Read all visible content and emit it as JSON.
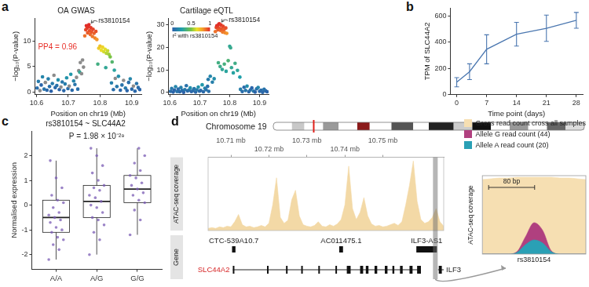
{
  "chart_data": [
    {
      "panel_label": "a",
      "type": "scatter",
      "title": "OA GWAS",
      "x_label": "Position on chr19 (Mb)",
      "y_label": "−log₁₀(P-value)",
      "xlim": [
        10.595,
        10.93
      ],
      "xticks": [
        10.6,
        10.7,
        10.8,
        10.9
      ],
      "ylim": [
        -0.5,
        14.5
      ],
      "yticks": [
        0,
        5,
        10
      ],
      "points": {
        "x": [
          10.602,
          10.606,
          10.611,
          10.615,
          10.619,
          10.624,
          10.628,
          10.633,
          10.637,
          10.641,
          10.646,
          10.65,
          10.655,
          10.659,
          10.664,
          10.668,
          10.672,
          10.677,
          10.681,
          10.686,
          10.69,
          10.695,
          10.699,
          10.703,
          10.708,
          10.712,
          10.717,
          10.721,
          10.726,
          10.73,
          10.836,
          10.842,
          10.848,
          10.853,
          10.858,
          10.864,
          10.869,
          10.874,
          10.88,
          10.885,
          10.89,
          10.895,
          10.9,
          10.905,
          10.91,
          10.915,
          10.92,
          10.925,
          10.733,
          10.736,
          10.738,
          10.742,
          10.745,
          10.748,
          10.793,
          10.818,
          10.838,
          10.845,
          10.796,
          10.8,
          10.804,
          10.808,
          10.812,
          10.816,
          10.82,
          10.824,
          10.828,
          10.832,
          10.752,
          10.755,
          10.757,
          10.759,
          10.761,
          10.763,
          10.765,
          10.767,
          10.769,
          10.771,
          10.773,
          10.776,
          10.778,
          10.781,
          10.784,
          10.787,
          10.79
        ],
        "y": [
          0.8,
          2.1,
          0.3,
          1.4,
          3.0,
          0.6,
          1.9,
          0.4,
          2.6,
          1.1,
          0.2,
          1.7,
          3.3,
          0.9,
          1.3,
          2.4,
          0.5,
          1.0,
          2.0,
          0.3,
          1.6,
          2.8,
          0.7,
          1.2,
          3.5,
          0.4,
          2.2,
          1.5,
          2.9,
          0.6,
          1.8,
          0.5,
          2.7,
          1.1,
          3.1,
          0.4,
          1.4,
          2.3,
          0.8,
          0.3,
          1.9,
          2.6,
          0.6,
          1.2,
          0.2,
          1.7,
          0.9,
          0.5,
          4.2,
          3.9,
          5.8,
          3.6,
          6.3,
          4.9,
          5.5,
          4.8,
          5.9,
          4.3,
          8.6,
          9.0,
          8.2,
          8.8,
          7.9,
          8.4,
          7.6,
          8.1,
          7.4,
          6.9,
          11.0,
          12.2,
          13.0,
          12.5,
          11.6,
          12.8,
          13.2,
          12.0,
          11.3,
          12.6,
          11.8,
          10.9,
          12.3,
          11.5,
          10.6,
          11.9,
          10.3
        ],
        "r2": [
          0.05,
          0.1,
          null,
          0.02,
          0.15,
          0.08,
          null,
          0.03,
          0.12,
          0.06,
          0.01,
          0.1,
          null,
          0.04,
          0.07,
          0.18,
          0.02,
          null,
          0.09,
          0.03,
          0.11,
          0.2,
          0.05,
          null,
          0.22,
          0.04,
          0.14,
          0.08,
          null,
          0.06,
          0.12,
          0.05,
          null,
          0.09,
          0.18,
          0.03,
          0.07,
          null,
          0.1,
          0.02,
          0.06,
          0.15,
          0.04,
          null,
          0.03,
          0.08,
          0.05,
          0.02,
          null,
          0.3,
          null,
          null,
          null,
          null,
          0.35,
          0.3,
          0.4,
          0.28,
          0.7,
          0.72,
          0.66,
          0.68,
          0.62,
          0.64,
          0.58,
          0.6,
          0.55,
          0.5,
          0.88,
          0.95,
          1.0,
          0.97,
          0.92,
          0.99,
          1.0,
          0.94,
          0.9,
          0.98,
          0.93,
          0.87,
          0.96,
          0.91,
          0.85,
          0.94,
          0.82
        ]
      },
      "annotations": [
        {
          "text": "PP4 = 0.96",
          "color": "#e8312a"
        },
        {
          "text": "rs3810154",
          "x": 10.765,
          "y": 13.2
        }
      ]
    },
    {
      "type": "scatter",
      "title": "Cartilage eQTL",
      "x_label": "Position on chr19 (Mb)",
      "y_label": "−log₁₀(P-value)",
      "xlim": [
        10.595,
        10.93
      ],
      "xticks": [
        10.6,
        10.7,
        10.8,
        10.9
      ],
      "ylim": [
        -1,
        33
      ],
      "yticks": [
        0,
        10,
        20,
        30
      ],
      "points": {
        "x": [
          10.602,
          10.606,
          10.611,
          10.615,
          10.619,
          10.624,
          10.628,
          10.633,
          10.637,
          10.641,
          10.646,
          10.65,
          10.655,
          10.659,
          10.664,
          10.668,
          10.672,
          10.677,
          10.681,
          10.686,
          10.69,
          10.695,
          10.699,
          10.703,
          10.708,
          10.712,
          10.717,
          10.721,
          10.726,
          10.73,
          10.836,
          10.842,
          10.848,
          10.853,
          10.858,
          10.864,
          10.869,
          10.874,
          10.88,
          10.885,
          10.89,
          10.895,
          10.9,
          10.905,
          10.91,
          10.915,
          10.92,
          10.925,
          10.728,
          10.735,
          10.742,
          10.748,
          10.8,
          10.803,
          10.762,
          10.768,
          10.775,
          10.782,
          10.788,
          10.795,
          10.806,
          10.812,
          10.818,
          10.826,
          10.834,
          10.752,
          10.755,
          10.757,
          10.759,
          10.761,
          10.763,
          10.765,
          10.767,
          10.769,
          10.771,
          10.773,
          10.776,
          10.778,
          10.781,
          10.784,
          10.787,
          10.79
        ],
        "y": [
          0.5,
          1.8,
          0.2,
          1.1,
          2.6,
          0.4,
          1.5,
          0.3,
          2.2,
          0.9,
          0.1,
          1.3,
          3.0,
          0.7,
          1.0,
          2.0,
          0.4,
          0.8,
          1.7,
          0.2,
          1.2,
          2.4,
          0.6,
          0.9,
          3.4,
          0.3,
          1.9,
          1.2,
          2.7,
          0.5,
          1.4,
          0.4,
          2.3,
          0.9,
          2.8,
          0.3,
          1.1,
          2.0,
          0.6,
          0.2,
          1.6,
          2.2,
          0.5,
          1.0,
          0.1,
          1.4,
          0.7,
          0.3,
          5.8,
          7.2,
          4.6,
          6.1,
          20.5,
          19.8,
          13.2,
          11.5,
          10.2,
          12.6,
          9.4,
          14.1,
          11.0,
          8.7,
          12.9,
          9.8,
          6.8,
          27.0,
          28.8,
          29.6,
          29.0,
          27.8,
          30.1,
          30.5,
          28.4,
          27.5,
          29.9,
          28.1,
          26.8,
          29.3,
          27.9,
          26.5,
          28.6,
          26.2
        ],
        "r2": [
          0.05,
          0.1,
          0.02,
          0.02,
          0.15,
          0.08,
          0.04,
          0.03,
          0.12,
          0.06,
          0.01,
          0.1,
          0.07,
          0.04,
          0.07,
          0.18,
          0.02,
          0.05,
          0.09,
          0.03,
          0.11,
          0.2,
          0.05,
          0.03,
          0.22,
          0.04,
          0.14,
          0.08,
          0.06,
          0.06,
          0.12,
          0.05,
          0.04,
          0.09,
          0.18,
          0.03,
          0.07,
          0.02,
          0.1,
          0.02,
          0.06,
          0.15,
          0.04,
          0.05,
          0.03,
          0.08,
          0.05,
          0.02,
          0.1,
          0.15,
          0.12,
          0.18,
          0.3,
          0.32,
          0.35,
          0.33,
          0.3,
          0.36,
          0.28,
          0.38,
          0.31,
          0.27,
          0.34,
          0.29,
          0.25,
          0.88,
          0.95,
          1.0,
          0.97,
          0.92,
          0.99,
          1.0,
          0.94,
          0.9,
          0.98,
          0.93,
          0.87,
          0.96,
          0.91,
          0.85,
          0.94,
          0.82
        ]
      },
      "colorbar": {
        "label": "r² with rs3810154",
        "range": [
          0,
          1
        ],
        "ticks": [
          0,
          0.5,
          1
        ]
      },
      "annotations": [
        {
          "text": "rs3810154",
          "x": 10.765,
          "y": 30.5
        }
      ]
    },
    {
      "panel_label": "b",
      "type": "line",
      "x_label": "Time point (days)",
      "y_label": "TPM of SLC44A2",
      "x": [
        0,
        3,
        7,
        14,
        21,
        28
      ],
      "values": [
        95,
        175,
        345,
        460,
        505,
        565
      ],
      "errors": [
        35,
        60,
        110,
        90,
        100,
        60
      ],
      "color": "#4b77b0",
      "xlim": [
        -1.5,
        29.5
      ],
      "xticks": [
        0,
        7,
        14,
        21,
        28
      ],
      "ylim": [
        0,
        660
      ],
      "yticks": [
        0,
        200,
        400,
        600
      ]
    },
    {
      "panel_label": "c",
      "type": "box",
      "title": "rs3810154 ~ SLC44A2",
      "y_label": "Normalised expression",
      "categories": [
        "A/A",
        "A/G",
        "G/G"
      ],
      "boxes": [
        {
          "min": -2.2,
          "q1": -1.1,
          "median": -0.5,
          "q3": 0.2,
          "max": 1.8
        },
        {
          "min": -2.0,
          "q1": -0.5,
          "median": 0.15,
          "q3": 0.8,
          "max": 2.3
        },
        {
          "min": -1.2,
          "q1": 0.1,
          "median": 0.65,
          "q3": 1.2,
          "max": 2.3
        }
      ],
      "points": [
        [
          -2.2,
          -1.8,
          -1.6,
          -1.4,
          -1.3,
          -1.1,
          -1.0,
          -0.9,
          -0.7,
          -0.6,
          -0.5,
          -0.4,
          -0.3,
          -0.1,
          0.1,
          0.2,
          0.4,
          0.7,
          1.1,
          1.8
        ],
        [
          -2.0,
          -1.4,
          -1.1,
          -0.8,
          -0.6,
          -0.5,
          -0.3,
          -0.1,
          0.0,
          0.15,
          0.3,
          0.4,
          0.6,
          0.7,
          0.8,
          1.0,
          1.3,
          1.6,
          2.0,
          2.3
        ],
        [
          -1.2,
          -0.6,
          -0.2,
          0.1,
          0.2,
          0.4,
          0.5,
          0.65,
          0.8,
          0.9,
          1.1,
          1.2,
          1.4,
          1.7,
          2.0,
          2.3
        ]
      ],
      "color": "#7a5cb5",
      "ylim": [
        -2.6,
        3.0
      ],
      "yticks": [
        -2,
        -1,
        0,
        1,
        2
      ],
      "annotations": [
        {
          "text": "P = 1.98 × 10⁻²⁹"
        }
      ]
    },
    {
      "panel_label": "d",
      "type": "area",
      "chromosome": "Chromosome 19",
      "y_label": "ATAC-seq coverage",
      "genes_label": "Gene",
      "x": [
        10.704,
        10.705,
        10.706,
        10.707,
        10.708,
        10.709,
        10.71,
        10.711,
        10.712,
        10.713,
        10.714,
        10.715,
        10.716,
        10.717,
        10.718,
        10.719,
        10.72,
        10.721,
        10.722,
        10.723,
        10.724,
        10.725,
        10.726,
        10.727,
        10.728,
        10.729,
        10.73,
        10.731,
        10.732,
        10.733,
        10.734,
        10.735,
        10.736,
        10.737,
        10.738,
        10.739,
        10.74,
        10.741,
        10.742,
        10.743,
        10.744,
        10.745,
        10.746,
        10.747,
        10.748,
        10.749,
        10.75,
        10.751,
        10.752,
        10.753,
        10.754,
        10.755,
        10.756,
        10.757,
        10.758,
        10.759,
        10.76,
        10.761,
        10.762,
        10.763,
        10.764,
        10.765,
        10.766
      ],
      "values": [
        0.03,
        0.04,
        0.03,
        0.05,
        0.04,
        0.06,
        0.05,
        0.12,
        0.22,
        0.08,
        0.05,
        0.06,
        0.04,
        0.05,
        0.07,
        0.05,
        0.1,
        0.35,
        0.72,
        0.18,
        0.1,
        0.14,
        0.42,
        0.55,
        0.2,
        0.08,
        0.06,
        0.05,
        0.07,
        0.12,
        0.06,
        0.05,
        0.08,
        0.06,
        0.09,
        0.15,
        0.35,
        0.88,
        0.3,
        0.15,
        0.25,
        0.45,
        0.2,
        0.09,
        0.06,
        0.07,
        0.05,
        0.06,
        0.08,
        0.1,
        0.07,
        0.12,
        0.35,
        0.62,
        0.95,
        0.4,
        0.15,
        0.1,
        0.12,
        0.18,
        0.3,
        0.12,
        0.06
      ],
      "color": "#f3d9a6",
      "xlim": [
        10.704,
        10.766
      ],
      "xticks": [
        {
          "value": 10.71,
          "label": "10.71 mb"
        },
        {
          "value": 10.72,
          "label": "10.72 mb"
        },
        {
          "value": 10.73,
          "label": "10.73 mb"
        },
        {
          "value": 10.74,
          "label": "10.74 mb"
        },
        {
          "value": 10.75,
          "label": "10.75 mb"
        }
      ],
      "ylim": [
        0,
        1
      ],
      "tick_labels": "x",
      "highlight": {
        "x": 10.7638
      },
      "genes": [
        {
          "name": "CTC-539A10.7",
          "start": 10.7103,
          "end": 10.7112,
          "exons": [
            [
              10.7103,
              10.7112
            ]
          ]
        },
        {
          "name": "AC011475.1",
          "start": 10.7385,
          "end": 10.7395,
          "exons": [
            [
              10.7385,
              10.7395
            ]
          ]
        },
        {
          "name": "ILF3-AS1",
          "start": 10.7588,
          "end": 10.7642,
          "exons": [
            [
              10.7588,
              10.7642
            ]
          ]
        },
        {
          "name": "SLC44A2",
          "start": 10.7105,
          "end": 10.76,
          "color": "#d62728",
          "exons": [
            [
              10.7105,
              10.7108
            ],
            [
              10.7195,
              10.7198
            ],
            [
              10.7245,
              10.7248
            ],
            [
              10.7285,
              10.7288
            ],
            [
              10.733,
              10.7333
            ],
            [
              10.7375,
              10.7378
            ],
            [
              10.7405,
              10.7415
            ],
            [
              10.744,
              10.7448
            ],
            [
              10.7455,
              10.7462
            ],
            [
              10.7478,
              10.7485
            ],
            [
              10.7505,
              10.7512
            ],
            [
              10.7525,
              10.753
            ],
            [
              10.7545,
              10.7552
            ],
            [
              10.757,
              10.7578
            ],
            [
              10.759,
              10.76
            ]
          ]
        },
        {
          "name": "ILF3",
          "start": 10.7645,
          "end": 10.79,
          "exons": [
            [
              10.7647,
              10.7655
            ],
            [
              10.77,
              10.771
            ]
          ]
        }
      ]
    },
    {
      "type": "area",
      "y_label": "ATAC-seq coverage",
      "x": [
        -90,
        -75,
        -60,
        -45,
        -30,
        -15,
        0,
        15,
        30,
        45,
        60,
        75,
        90
      ],
      "series": [
        {
          "name": "Gross read count cross all samples",
          "color": "#f6dfb2",
          "values": [
            0.95,
            0.96,
            0.97,
            0.97,
            0.98,
            0.98,
            0.98,
            0.98,
            0.98,
            0.97,
            0.97,
            0.96,
            0.95
          ]
        },
        {
          "name": "Allele G read count (44)",
          "color": "#b0407f",
          "values": [
            0,
            0,
            0,
            0,
            0.03,
            0.22,
            0.4,
            0.3,
            0.04,
            0,
            0,
            0,
            0
          ]
        },
        {
          "name": "Allele A read count (20)",
          "color": "#2aa0b5",
          "values": [
            0,
            0,
            0,
            0,
            0.02,
            0.12,
            0.18,
            0.14,
            0.03,
            0,
            0,
            0,
            0
          ]
        }
      ],
      "xlim": [
        -90,
        90
      ],
      "ylim": [
        0,
        1
      ],
      "tick_labels": false,
      "legend": "upper right",
      "scale_bar": {
        "text": "80 bp",
        "length": 80
      },
      "annotations": [
        {
          "text": "rs3810154"
        }
      ]
    }
  ]
}
